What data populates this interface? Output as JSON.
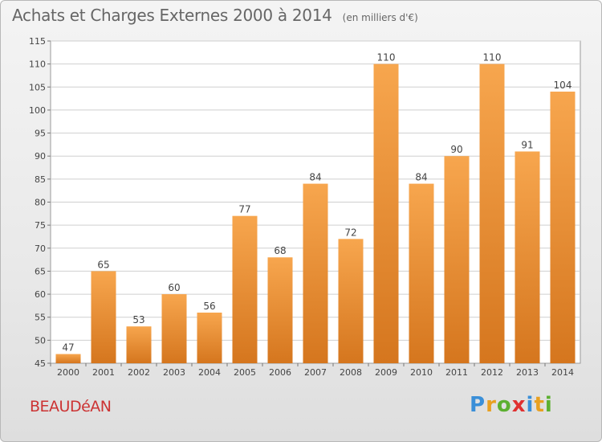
{
  "title": "Achats et Charges Externes 2000 à 2014",
  "subtitle": "(en milliers d'€)",
  "town": "BEAUDéAN",
  "logo": {
    "letters": [
      "P",
      "r",
      "o",
      "x",
      "i",
      "t",
      "i"
    ]
  },
  "colors": {
    "bar_light": "#f7a64e",
    "bar_dark": "#d5761e",
    "grid": "#cfcfcf",
    "town": "#cc3333"
  },
  "chart_data": {
    "type": "bar",
    "title": "Achats et Charges Externes 2000 à 2014",
    "subtitle": "(en milliers d'€)",
    "categories": [
      "2000",
      "2001",
      "2002",
      "2003",
      "2004",
      "2005",
      "2006",
      "2007",
      "2008",
      "2009",
      "2010",
      "2011",
      "2012",
      "2013",
      "2014"
    ],
    "values": [
      47,
      65,
      53,
      60,
      56,
      77,
      68,
      84,
      72,
      110,
      84,
      90,
      110,
      91,
      104
    ],
    "ylim": [
      45,
      115
    ],
    "yticks": [
      45,
      50,
      55,
      60,
      65,
      70,
      75,
      80,
      85,
      90,
      95,
      100,
      105,
      110,
      115
    ],
    "grid": true,
    "xlabel": "",
    "ylabel": ""
  }
}
